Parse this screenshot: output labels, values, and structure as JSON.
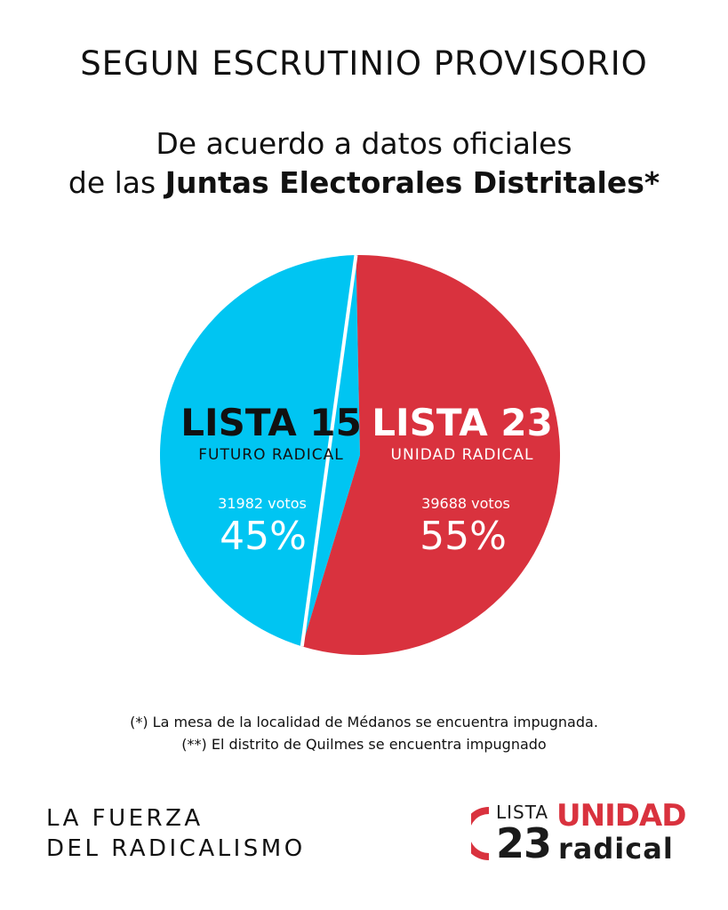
{
  "header": {
    "headline": "SEGUN ESCRUTINIO PROVISORIO",
    "subtitle_line1": "De acuerdo a datos oficiales",
    "subtitle_line2_prefix": "de las ",
    "subtitle_line2_bold": "Juntas Electorales Distritales*"
  },
  "chart_data": {
    "type": "pie",
    "slices": [
      {
        "name": "LISTA 15",
        "subname": "FUTURO RADICAL",
        "votes_label": "31982 votos",
        "votes": 31982,
        "percent_label": "45%",
        "value": 45,
        "color": "#00c5f2"
      },
      {
        "name": "LISTA 23",
        "subname": "UNIDAD RADICAL",
        "votes_label": "39688 votos",
        "votes": 39688,
        "percent_label": "55%",
        "value": 55,
        "color": "#d9323e"
      }
    ]
  },
  "footnotes": {
    "line1": "(*) La mesa de la localidad de Médanos se encuentra impugnada.",
    "line2": "(**) El distrito de Quilmes se encuentra impugnado"
  },
  "slogan": {
    "line1": "LA FUERZA",
    "line2": "DEL RADICALISMO"
  },
  "logo": {
    "lista": "LISTA",
    "number": "23",
    "unidad": "UNIDAD",
    "radical": "radical",
    "accent": "#d9323e"
  }
}
